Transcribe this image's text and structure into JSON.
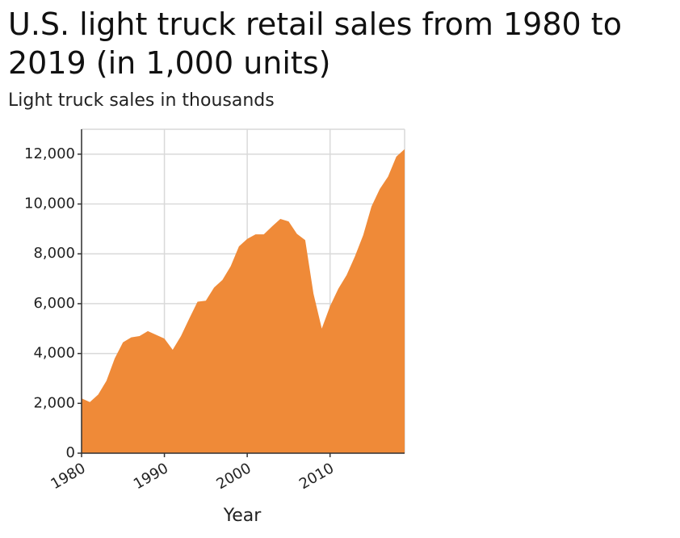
{
  "chart_data": {
    "type": "area",
    "title": "U.S. light truck retail sales from 1980 to 2019 (in 1,000 units)",
    "ylabel": "Light truck sales in thousands",
    "xlabel": "Year",
    "xlim": [
      1980,
      2019
    ],
    "ylim": [
      0,
      13000
    ],
    "x_ticks": [
      1980,
      1990,
      2000,
      2010
    ],
    "y_ticks": [
      0,
      2000,
      4000,
      6000,
      8000,
      10000,
      12000
    ],
    "x_tick_labels": [
      "1980",
      "1990",
      "2000",
      "2010"
    ],
    "y_tick_labels": [
      "0",
      "2,000",
      "4,000",
      "6,000",
      "8,000",
      "10,000",
      "12,000"
    ],
    "grid": true,
    "fill_color": "#ef8a38",
    "x": [
      1980,
      1981,
      1982,
      1983,
      1984,
      1985,
      1986,
      1987,
      1988,
      1989,
      1990,
      1991,
      1992,
      1993,
      1994,
      1995,
      1996,
      1997,
      1998,
      1999,
      2000,
      2001,
      2002,
      2003,
      2004,
      2005,
      2006,
      2007,
      2008,
      2009,
      2010,
      2011,
      2012,
      2013,
      2014,
      2015,
      2016,
      2017,
      2018,
      2019
    ],
    "values": [
      2200,
      2050,
      2350,
      2900,
      3800,
      4450,
      4650,
      4700,
      4900,
      4750,
      4600,
      4150,
      4700,
      5400,
      6080,
      6120,
      6650,
      6950,
      7500,
      8300,
      8600,
      8780,
      8780,
      9100,
      9400,
      9300,
      8800,
      8550,
      6400,
      5000,
      5900,
      6600,
      7150,
      7900,
      8750,
      9900,
      10600,
      11100,
      11900,
      12200
    ]
  }
}
